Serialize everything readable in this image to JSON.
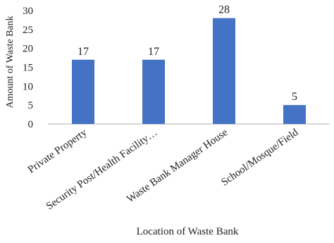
{
  "chart_data": {
    "type": "bar",
    "categories": [
      "Private Property",
      "Security Post/Health Facility…",
      "Waste Bank Manager House",
      "School/Mosque/Field"
    ],
    "values": [
      17,
      17,
      28,
      5
    ],
    "data_labels": [
      "17",
      "17",
      "28",
      "5"
    ],
    "title": "",
    "xlabel": "Location of Waste Bank",
    "ylabel": "Amount of Waste Bank",
    "ylim": [
      0,
      30
    ],
    "yticks": [
      "0",
      "5",
      "10",
      "15",
      "20",
      "25",
      "30"
    ],
    "grid": false,
    "legend": "none",
    "bar_color": "#4472C4",
    "axis_color": "#BFBFBF"
  }
}
